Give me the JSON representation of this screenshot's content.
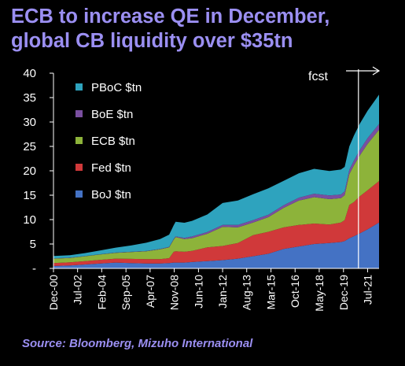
{
  "header": {
    "title_line1": "ECB to increase QE in December,",
    "title_line2": "global CB liquidity over $35tn"
  },
  "footer": {
    "source": "Source:  Bloomberg, Mizuho International"
  },
  "colors": {
    "background": "#000000",
    "title": "#9B8FF2",
    "BoJ": "#4472C4",
    "Fed": "#D0393A",
    "ECB": "#8DB33A",
    "BoE": "#7A4FA0",
    "PBoC": "#2EA3BE"
  },
  "chart_data": {
    "type": "area",
    "stacked": true,
    "ylim": [
      0,
      40
    ],
    "yticks": [
      "-",
      "5",
      "10",
      "15",
      "20",
      "25",
      "30",
      "35",
      "40"
    ],
    "ytick_values": [
      0,
      5,
      10,
      15,
      20,
      25,
      30,
      35,
      40
    ],
    "xlim": [
      2000.92,
      2022.25
    ],
    "xtick_labels": [
      "Dec-00",
      "Jul-02",
      "Feb-04",
      "Sep-05",
      "Apr-07",
      "Nov-08",
      "Jun-10",
      "Jan-12",
      "Aug-13",
      "Mar-15",
      "Oct-16",
      "May-18",
      "Dec-19",
      "Jul-21"
    ],
    "xtick_values": [
      2000.92,
      2002.5,
      2004.08,
      2005.67,
      2007.25,
      2008.83,
      2010.42,
      2012.0,
      2013.58,
      2015.17,
      2016.75,
      2018.33,
      2019.92,
      2021.5
    ],
    "legend_position": "top-left",
    "forecast_start": 2020.9,
    "forecast_label": "fcst",
    "x": [
      2000.92,
      2002.0,
      2003.0,
      2004.0,
      2005.0,
      2006.0,
      2007.0,
      2007.9,
      2008.5,
      2008.8,
      2008.92,
      2009.5,
      2010.0,
      2011.0,
      2012.0,
      2013.0,
      2014.0,
      2015.0,
      2016.0,
      2017.0,
      2018.0,
      2019.0,
      2019.75,
      2020.0,
      2020.3,
      2020.6,
      2021.0,
      2021.5,
      2022.25
    ],
    "series": [
      {
        "name": "BoJ $tn",
        "color": "#4472C4",
        "values": [
          0.5,
          0.6,
          0.8,
          1.0,
          1.2,
          1.1,
          1.0,
          1.0,
          1.1,
          1.2,
          1.2,
          1.2,
          1.3,
          1.5,
          1.7,
          2.0,
          2.5,
          3.0,
          4.0,
          4.5,
          5.0,
          5.2,
          5.4,
          5.6,
          6.2,
          6.6,
          7.2,
          8.0,
          9.4
        ]
      },
      {
        "name": "Fed $tn",
        "color": "#D0393A",
        "values": [
          0.6,
          0.65,
          0.7,
          0.75,
          0.8,
          0.85,
          0.9,
          0.9,
          1.0,
          2.2,
          2.3,
          2.2,
          2.3,
          2.8,
          2.9,
          3.2,
          4.3,
          4.5,
          4.4,
          4.4,
          4.2,
          3.8,
          4.0,
          4.3,
          6.8,
          7.0,
          7.6,
          8.0,
          8.5
        ]
      },
      {
        "name": "ECB $tn",
        "color": "#8DB33A",
        "values": [
          0.9,
          0.9,
          1.0,
          1.1,
          1.2,
          1.4,
          1.6,
          2.0,
          2.2,
          2.5,
          2.9,
          2.6,
          2.6,
          2.8,
          3.9,
          3.2,
          2.6,
          3.0,
          4.0,
          5.0,
          5.4,
          5.2,
          5.0,
          5.1,
          6.3,
          7.5,
          8.4,
          9.5,
          10.5
        ]
      },
      {
        "name": "BoE $tn",
        "color": "#7A4FA0",
        "values": [
          0.05,
          0.05,
          0.05,
          0.05,
          0.05,
          0.05,
          0.06,
          0.1,
          0.12,
          0.15,
          0.15,
          0.25,
          0.35,
          0.35,
          0.4,
          0.5,
          0.5,
          0.5,
          0.55,
          0.6,
          0.7,
          0.75,
          0.75,
          0.8,
          0.9,
          1.0,
          1.1,
          1.2,
          1.2
        ]
      },
      {
        "name": "PBoC $tn",
        "color": "#2EA3BE",
        "values": [
          0.5,
          0.5,
          0.6,
          0.8,
          1.0,
          1.3,
          1.7,
          2.0,
          2.5,
          2.8,
          3.0,
          3.1,
          3.2,
          3.6,
          4.5,
          5.0,
          5.3,
          5.4,
          5.0,
          5.0,
          5.1,
          5.0,
          5.1,
          5.0,
          4.8,
          5.1,
          5.4,
          5.6,
          6.0
        ]
      }
    ]
  }
}
